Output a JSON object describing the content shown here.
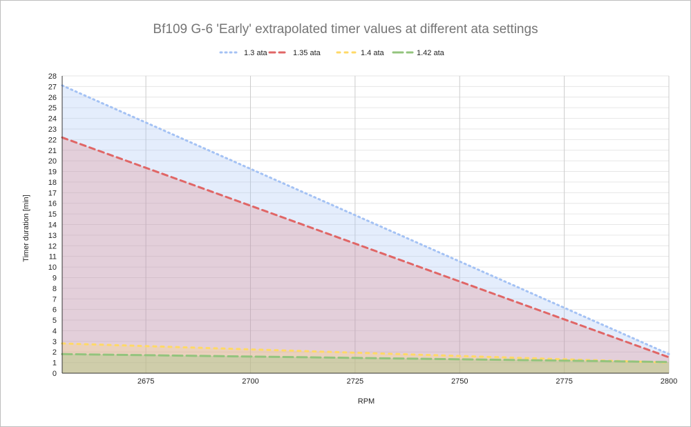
{
  "chart_data": {
    "type": "area",
    "title": "Bf109 G-6 'Early' extrapolated timer values at different ata settings",
    "xlabel": "RPM",
    "ylabel": "Timer duration [min]",
    "xlim": [
      2655,
      2800
    ],
    "ylim": [
      0,
      28
    ],
    "x_ticks": [
      2675,
      2700,
      2725,
      2750,
      2775,
      2800
    ],
    "y_ticks": [
      0,
      1,
      2,
      3,
      4,
      5,
      6,
      7,
      8,
      9,
      10,
      11,
      12,
      13,
      14,
      15,
      16,
      17,
      18,
      19,
      20,
      21,
      22,
      23,
      24,
      25,
      26,
      27,
      28
    ],
    "grid": true,
    "legend_position": "top",
    "x": [
      2655,
      2800
    ],
    "series": [
      {
        "name": "1.3 ata",
        "values": [
          27.1,
          1.8
        ],
        "color": "#a4c2f4",
        "fill": "rgba(164,194,244,0.30)",
        "dash": "2 5"
      },
      {
        "name": "1.35 ata",
        "values": [
          22.2,
          1.5
        ],
        "color": "#e06666",
        "fill": "rgba(224,102,102,0.22)",
        "dash": "8 6"
      },
      {
        "name": "1.4 ata",
        "values": [
          2.8,
          1.0
        ],
        "color": "#ffd966",
        "fill": "rgba(255,217,102,0.25)",
        "dash": "4 7"
      },
      {
        "name": "1.42 ata",
        "values": [
          1.8,
          1.05
        ],
        "color": "#93c47d",
        "fill": "rgba(147,196,125,0.30)",
        "dash": "14 6"
      }
    ]
  }
}
